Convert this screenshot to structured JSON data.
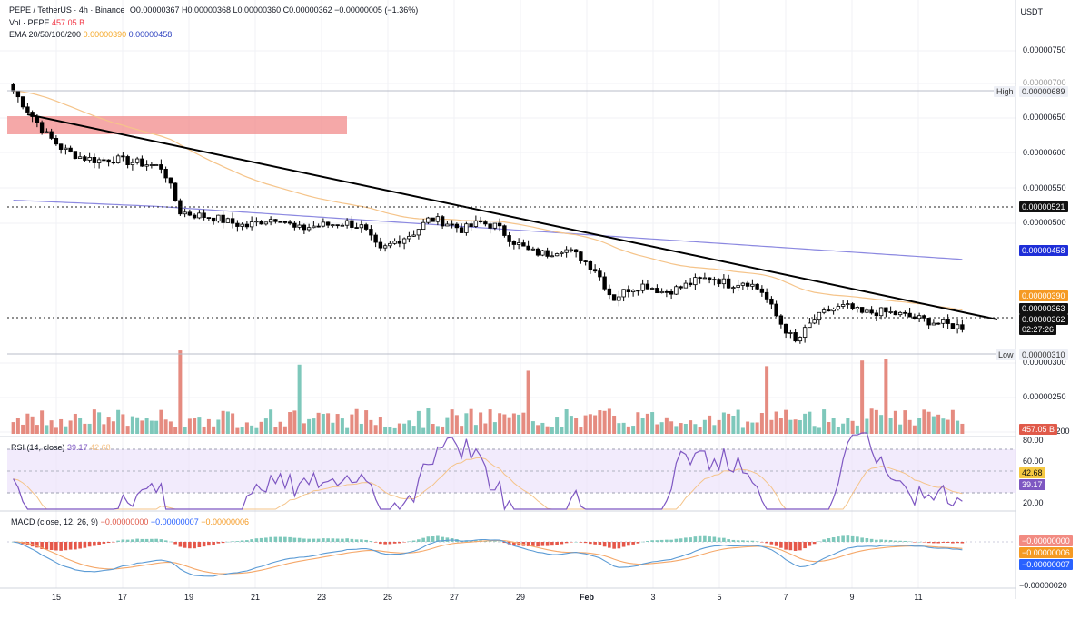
{
  "header": {
    "symbol": "PEPE / TetherUS · 4h · Binance",
    "ohlc": "O0.00000367 H0.00000368 L0.00000360 C0.00000362 −0.00000005 (−1.36%)",
    "vol_label": "Vol · PEPE",
    "vol_value": "457.05 B",
    "ema_label": "EMA 20/50/100/200",
    "ema_value_1": "0.00000390",
    "ema_value_2": "0.00000458"
  },
  "price_axis": {
    "unit": "USDT",
    "ticks": [
      "0.00000750",
      "0.00000700",
      "0.00000650",
      "0.00000600",
      "0.00000550",
      "0.00000500",
      "0.00000300",
      "0.00000250",
      "0.00000200"
    ]
  },
  "tags": {
    "high_label": "High",
    "high_value": "0.00000689",
    "level_521": "0.00000521",
    "ema200": "0.00000458",
    "ema50": "0.00000390",
    "price_363": "0.00000363",
    "price_362": "0.00000362",
    "countdown": "02:27:26",
    "low_label": "Low",
    "low_value": "0.00000310",
    "vol_tag": "457.05 B"
  },
  "rsi": {
    "label": "RSI (14, close)",
    "value1": "39.17",
    "value2": "42.68",
    "ticks": [
      "80.00",
      "60.00",
      "20.00"
    ],
    "tag_yellow": "42.68",
    "tag_purple": "39.17"
  },
  "macd": {
    "label": "MACD (close, 12, 26, 9)",
    "v1": "−0.00000000",
    "v2": "−0.00000007",
    "v3": "−0.00000006",
    "tag_red1": "−0.00000000",
    "tag_red2": "−0.00000006",
    "tag_blue": "−0.00000007",
    "tick": "−0.00000020"
  },
  "time_axis": [
    "15",
    "17",
    "19",
    "21",
    "23",
    "25",
    "27",
    "29",
    "Feb",
    "3",
    "5",
    "7",
    "9",
    "11"
  ],
  "chart_data": {
    "type": "candlestick",
    "title": "PEPE / TetherUS · 4h · Binance",
    "ylabel": "USDT",
    "ylim": [
      3e-06,
      7.6e-06
    ],
    "annotations": [
      "High 0.00000689",
      "Low 0.00000310"
    ],
    "colors": {
      "up": "#26a69a",
      "down": "#000000",
      "vol_up": "#7ec8bb",
      "vol_down": "#e58b80",
      "trend": "#000000",
      "ema50": "#f5c48a",
      "ema200": "#8b88e0",
      "resistance_box": "#f28b8b"
    },
    "close_path": [
      6.85e-06,
      6.55e-06,
      6.25e-06,
      6.05e-06,
      5.95e-06,
      5.9e-06,
      5.92e-06,
      5.88e-06,
      5.85e-06,
      5.8e-06,
      5.2e-06,
      5.15e-06,
      5.12e-06,
      5.05e-06,
      5e-06,
      5.08e-06,
      5.12e-06,
      4.95e-06,
      5e-06,
      5.02e-06,
      5.05e-06,
      4.98e-06,
      4.65e-06,
      4.8e-06,
      4.9e-06,
      5.1e-06,
      5.05e-06,
      4.95e-06,
      5.05e-06,
      5e-06,
      4.8e-06,
      4.65e-06,
      4.62e-06,
      4.7e-06,
      4.58e-06,
      4.4e-06,
      4e-06,
      4.15e-06,
      4.2e-06,
      4.1e-06,
      4.15e-06,
      4.25e-06,
      4.3e-06,
      4.2e-06,
      4.25e-06,
      4.1e-06,
      3.7e-06,
      3.4e-06,
      3.7e-06,
      3.85e-06,
      3.9e-06,
      3.8e-06,
      3.83e-06,
      3.8e-06,
      3.75e-06,
      3.7e-06,
      3.65e-06,
      3.62e-06
    ]
  }
}
